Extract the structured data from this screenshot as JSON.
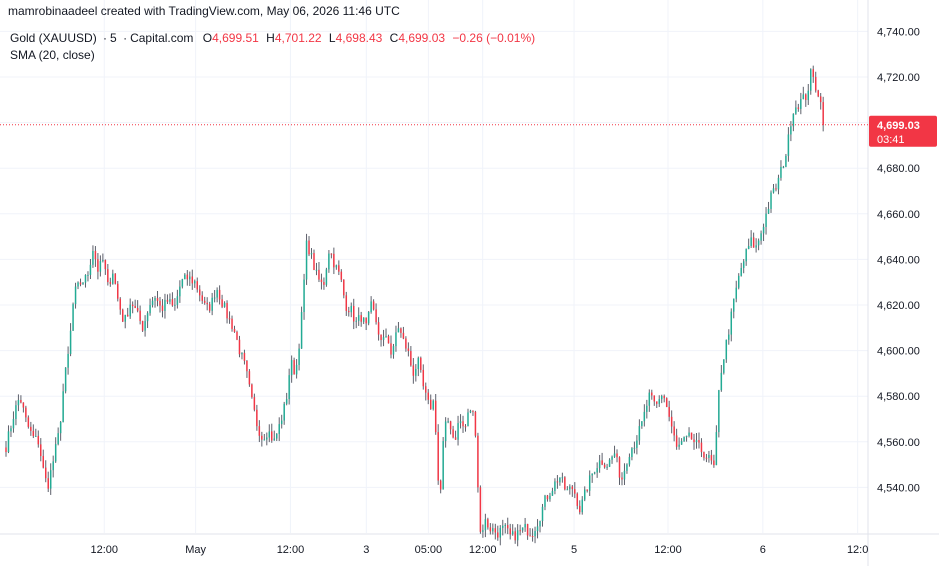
{
  "header": {
    "credit": "mamrobinaadeel created with TradingView.com, May 06, 2026 11:46 UTC",
    "symbol": "Gold (XAUUSD)",
    "interval": "5",
    "source": "Capital.com",
    "open_label": "O",
    "open": "4,699.51",
    "high_label": "H",
    "high": "4,701.22",
    "low_label": "L",
    "low": "4,698.43",
    "close_label": "C",
    "close": "4,699.03",
    "change": "−0.26 (−0.01%)",
    "indicator": "SMA (20, close)"
  },
  "colors": {
    "up": "#22ab94",
    "down": "#f23645",
    "wick": "#5d606b",
    "grid": "#f0f3fa",
    "axis_text": "#131722",
    "price_line": "#f23645",
    "badge_bg": "#f23645"
  },
  "price_badge": {
    "price": "4,699.03",
    "countdown": "03:41"
  },
  "chart_data": {
    "type": "candlestick",
    "title": "Gold (XAUUSD) · 5 · Capital.com",
    "ylim": [
      4520,
      4745
    ],
    "y_ticks": [
      4540,
      4560,
      4580,
      4600,
      4620,
      4640,
      4660,
      4680,
      4700,
      4720,
      4740
    ],
    "y_tick_labels": [
      "4,540.00",
      "4,560.00",
      "4,580.00",
      "4,600.00",
      "4,620.00",
      "4,640.00",
      "4,660.00",
      "4,680.00",
      "4,700.00",
      "4,720.00",
      "4,740.00"
    ],
    "x_ticks": [
      {
        "label": "12:00",
        "pos": 0.114
      },
      {
        "label": "May",
        "pos": 0.22
      },
      {
        "label": "12:00",
        "pos": 0.33
      },
      {
        "label": "3",
        "pos": 0.418
      },
      {
        "label": "05:00",
        "pos": 0.49
      },
      {
        "label": "12:00",
        "pos": 0.553
      },
      {
        "label": "5",
        "pos": 0.659
      },
      {
        "label": "12:00",
        "pos": 0.768
      },
      {
        "label": "6",
        "pos": 0.878
      },
      {
        "label": "12:0",
        "pos": 0.988
      }
    ],
    "path": [
      [
        0.0,
        4558
      ],
      [
        0.009,
        4572
      ],
      [
        0.016,
        4580
      ],
      [
        0.024,
        4568
      ],
      [
        0.031,
        4562
      ],
      [
        0.038,
        4560
      ],
      [
        0.043,
        4548
      ],
      [
        0.048,
        4540
      ],
      [
        0.055,
        4552
      ],
      [
        0.062,
        4565
      ],
      [
        0.067,
        4585
      ],
      [
        0.073,
        4600
      ],
      [
        0.079,
        4625
      ],
      [
        0.087,
        4630
      ],
      [
        0.094,
        4632
      ],
      [
        0.101,
        4645
      ],
      [
        0.107,
        4635
      ],
      [
        0.113,
        4640
      ],
      [
        0.118,
        4628
      ],
      [
        0.124,
        4635
      ],
      [
        0.13,
        4622
      ],
      [
        0.137,
        4612
      ],
      [
        0.145,
        4622
      ],
      [
        0.152,
        4616
      ],
      [
        0.159,
        4610
      ],
      [
        0.166,
        4620
      ],
      [
        0.173,
        4624
      ],
      [
        0.18,
        4618
      ],
      [
        0.188,
        4622
      ],
      [
        0.195,
        4618
      ],
      [
        0.203,
        4630
      ],
      [
        0.211,
        4632
      ],
      [
        0.219,
        4630
      ],
      [
        0.226,
        4624
      ],
      [
        0.232,
        4618
      ],
      [
        0.238,
        4620
      ],
      [
        0.244,
        4628
      ],
      [
        0.25,
        4622
      ],
      [
        0.257,
        4615
      ],
      [
        0.264,
        4610
      ],
      [
        0.271,
        4600
      ],
      [
        0.278,
        4592
      ],
      [
        0.285,
        4578
      ],
      [
        0.291,
        4568
      ],
      [
        0.297,
        4562
      ],
      [
        0.304,
        4565
      ],
      [
        0.311,
        4560
      ],
      [
        0.318,
        4568
      ],
      [
        0.325,
        4578
      ],
      [
        0.33,
        4595
      ],
      [
        0.336,
        4590
      ],
      [
        0.342,
        4610
      ],
      [
        0.349,
        4648
      ],
      [
        0.355,
        4640
      ],
      [
        0.361,
        4632
      ],
      [
        0.368,
        4628
      ],
      [
        0.375,
        4645
      ],
      [
        0.381,
        4638
      ],
      [
        0.388,
        4632
      ],
      [
        0.394,
        4620
      ],
      [
        0.4,
        4618
      ],
      [
        0.406,
        4612
      ],
      [
        0.412,
        4615
      ],
      [
        0.418,
        4610
      ],
      [
        0.424,
        4620
      ],
      [
        0.43,
        4612
      ],
      [
        0.436,
        4602
      ],
      [
        0.442,
        4608
      ],
      [
        0.448,
        4596
      ],
      [
        0.454,
        4612
      ],
      [
        0.46,
        4605
      ],
      [
        0.466,
        4600
      ],
      [
        0.472,
        4590
      ],
      [
        0.478,
        4595
      ],
      [
        0.485,
        4582
      ],
      [
        0.491,
        4575
      ],
      [
        0.497,
        4578
      ],
      [
        0.503,
        4530
      ],
      [
        0.508,
        4565
      ],
      [
        0.514,
        4570
      ],
      [
        0.52,
        4560
      ],
      [
        0.526,
        4570
      ],
      [
        0.532,
        4565
      ],
      [
        0.538,
        4575
      ],
      [
        0.544,
        4570
      ],
      [
        0.55,
        4520
      ],
      [
        0.556,
        4525
      ],
      [
        0.562,
        4522
      ],
      [
        0.57,
        4520
      ],
      [
        0.578,
        4522
      ],
      [
        0.586,
        4518
      ],
      [
        0.594,
        4520
      ],
      [
        0.602,
        4522
      ],
      [
        0.61,
        4520
      ],
      [
        0.618,
        4526
      ],
      [
        0.626,
        4535
      ],
      [
        0.634,
        4540
      ],
      [
        0.642,
        4545
      ],
      [
        0.65,
        4538
      ],
      [
        0.658,
        4540
      ],
      [
        0.666,
        4530
      ],
      [
        0.674,
        4540
      ],
      [
        0.682,
        4548
      ],
      [
        0.69,
        4552
      ],
      [
        0.698,
        4550
      ],
      [
        0.706,
        4555
      ],
      [
        0.714,
        4543
      ],
      [
        0.722,
        4555
      ],
      [
        0.73,
        4560
      ],
      [
        0.738,
        4568
      ],
      [
        0.746,
        4580
      ],
      [
        0.754,
        4575
      ],
      [
        0.762,
        4582
      ],
      [
        0.77,
        4570
      ],
      [
        0.778,
        4557
      ],
      [
        0.786,
        4560
      ],
      [
        0.794,
        4562
      ],
      [
        0.802,
        4558
      ],
      [
        0.81,
        4555
      ],
      [
        0.818,
        4551
      ],
      [
        0.822,
        4548
      ],
      [
        0.828,
        4588
      ],
      [
        0.834,
        4600
      ],
      [
        0.84,
        4612
      ],
      [
        0.846,
        4625
      ],
      [
        0.852,
        4635
      ],
      [
        0.858,
        4642
      ],
      [
        0.864,
        4648
      ],
      [
        0.87,
        4645
      ],
      [
        0.876,
        4652
      ],
      [
        0.882,
        4660
      ],
      [
        0.888,
        4668
      ],
      [
        0.894,
        4672
      ],
      [
        0.9,
        4680
      ],
      [
        0.906,
        4688
      ],
      [
        0.912,
        4705
      ],
      [
        0.918,
        4708
      ],
      [
        0.924,
        4710
      ],
      [
        0.929,
        4712
      ],
      [
        0.934,
        4722
      ],
      [
        0.939,
        4716
      ],
      [
        0.944,
        4712
      ],
      [
        0.948,
        4699
      ]
    ],
    "last_price": 4699.03
  }
}
